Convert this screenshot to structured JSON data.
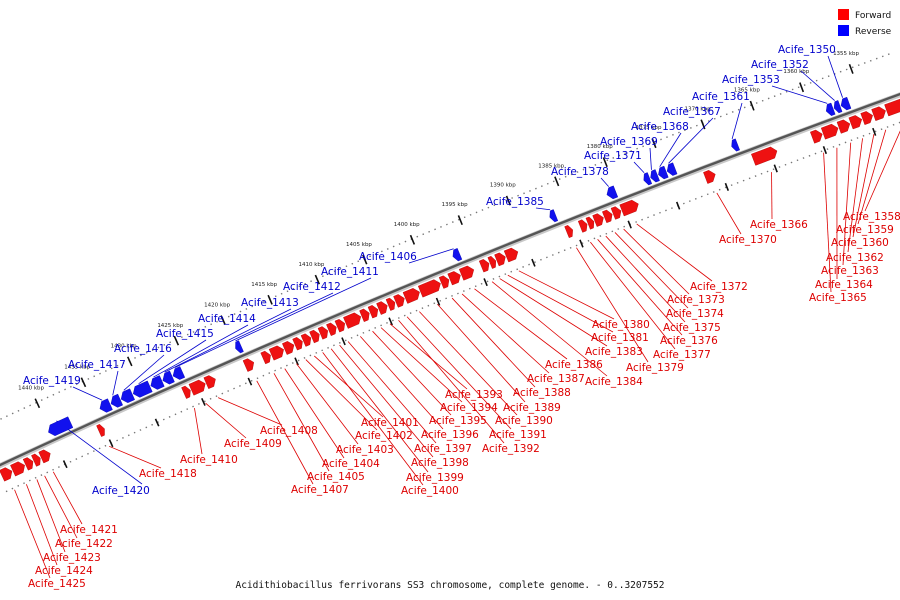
{
  "caption": "Acidithiobacillus ferrivorans SS3 chromosome, complete genome. - 0..3207552",
  "legend": [
    {
      "label": "Forward",
      "color": "#ff0000"
    },
    {
      "label": "Reverse",
      "color": "#0000ff"
    }
  ],
  "colors": {
    "forward": "#ee1111",
    "reverse": "#1111ee",
    "forward_line": "#dd0000",
    "reverse_line": "#0000cc",
    "backbone": "#555555"
  },
  "kbp_ticks": [
    {
      "kbp": 1355,
      "label": "1355 kbp"
    },
    {
      "kbp": 1360,
      "label": "1360 kbp"
    },
    {
      "kbp": 1365,
      "label": "1365 kbp"
    },
    {
      "kbp": 1370,
      "label": "1370 kbp"
    },
    {
      "kbp": 1375,
      "label": "1375 kbp"
    },
    {
      "kbp": 1380,
      "label": "1380 kbp"
    },
    {
      "kbp": 1385,
      "label": "1385 kbp"
    },
    {
      "kbp": 1390,
      "label": "1390 kbp"
    },
    {
      "kbp": 1395,
      "label": "1395 kbp"
    },
    {
      "kbp": 1400,
      "label": "1400 kbp"
    },
    {
      "kbp": 1405,
      "label": "1405 kbp"
    },
    {
      "kbp": 1410,
      "label": "1410 kbp"
    },
    {
      "kbp": 1415,
      "label": "1415 kbp"
    },
    {
      "kbp": 1420,
      "label": "1420 kbp"
    },
    {
      "kbp": 1425,
      "label": "1425 kbp"
    },
    {
      "kbp": 1430,
      "label": "1430 kbp"
    },
    {
      "kbp": 1435,
      "label": "1435 kbp"
    },
    {
      "kbp": 1440,
      "label": "1440 kbp"
    }
  ],
  "forward_genes": [
    {
      "label": "Acife_1358",
      "s": 1351.0,
      "e": 1353.2
    },
    {
      "label": "Acife_1359",
      "s": 1353.3,
      "e": 1354.5
    },
    {
      "label": "Acife_1360",
      "s": 1354.6,
      "e": 1355.6
    },
    {
      "label": "Acife_1362",
      "s": 1355.7,
      "e": 1356.8
    },
    {
      "label": "Acife_1363",
      "s": 1356.9,
      "e": 1358.0
    },
    {
      "label": "Acife_1364",
      "s": 1358.1,
      "e": 1359.6
    },
    {
      "label": "Acife_1365",
      "s": 1359.7,
      "e": 1360.7
    },
    {
      "label": "Acife_1366",
      "s": 1364.3,
      "e": 1366.7
    },
    {
      "label": "Acife_1370",
      "s": 1370.6,
      "e": 1371.6
    },
    {
      "label": "Acife_1372",
      "s": 1378.5,
      "e": 1380.2
    },
    {
      "label": "Acife_1373",
      "s": 1380.3,
      "e": 1381.1
    },
    {
      "label": "Acife_1374",
      "s": 1381.2,
      "e": 1382.0
    },
    {
      "label": "Acife_1375",
      "s": 1382.1,
      "e": 1383.0
    },
    {
      "label": "Acife_1376",
      "s": 1383.1,
      "e": 1383.7
    },
    {
      "label": "Acife_1377",
      "s": 1383.8,
      "e": 1384.5
    },
    {
      "label": "Acife_1379",
      "s": 1385.3,
      "e": 1385.9
    },
    {
      "label": "Acife_1380",
      "s": 1391.0,
      "e": 1392.2
    },
    {
      "label": "Acife_1381",
      "s": 1392.3,
      "e": 1393.2
    },
    {
      "label": "Acife_1383",
      "s": 1393.3,
      "e": 1393.9
    },
    {
      "label": "Acife_1384",
      "s": 1394.0,
      "e": 1394.8
    },
    {
      "label": "Acife_1386",
      "s": 1395.6,
      "e": 1396.9
    },
    {
      "label": "Acife_1387",
      "s": 1397.0,
      "e": 1398.1
    },
    {
      "label": "Acife_1388",
      "s": 1398.2,
      "e": 1399.0
    },
    {
      "label": "Acife_1389",
      "s": 1399.1,
      "e": 1401.2
    },
    {
      "label": "Acife_1390",
      "s": 1401.3,
      "e": 1402.8
    },
    {
      "label": "Acife_1391",
      "s": 1402.9,
      "e": 1403.8
    },
    {
      "label": "Acife_1392",
      "s": 1403.9,
      "e": 1404.6
    },
    {
      "label": "Acife_1393",
      "s": 1404.7,
      "e": 1405.6
    },
    {
      "label": "Acife_1394",
      "s": 1405.7,
      "e": 1406.5
    },
    {
      "label": "Acife_1395",
      "s": 1406.6,
      "e": 1407.4
    },
    {
      "label": "Acife_1396",
      "s": 1407.5,
      "e": 1409.1
    },
    {
      "label": "Acife_1397",
      "s": 1409.2,
      "e": 1410.0
    },
    {
      "label": "Acife_1398",
      "s": 1410.1,
      "e": 1410.9
    },
    {
      "label": "Acife_1399",
      "s": 1411.0,
      "e": 1411.8
    },
    {
      "label": "Acife_1400",
      "s": 1411.9,
      "e": 1412.7
    },
    {
      "label": "Acife_1401",
      "s": 1412.8,
      "e": 1413.6
    },
    {
      "label": "Acife_1402",
      "s": 1413.7,
      "e": 1414.5
    },
    {
      "label": "Acife_1403",
      "s": 1414.6,
      "e": 1415.6
    },
    {
      "label": "Acife_1404",
      "s": 1415.7,
      "e": 1417.0
    },
    {
      "label": "Acife_1405",
      "s": 1417.1,
      "e": 1417.9
    },
    {
      "label": "Acife_1407",
      "s": 1418.9,
      "e": 1419.8
    },
    {
      "label": "Acife_1408",
      "s": 1423.0,
      "e": 1424.0
    },
    {
      "label": "Acife_1409",
      "s": 1424.1,
      "e": 1425.6
    },
    {
      "label": "Acife_1410",
      "s": 1425.7,
      "e": 1426.4
    },
    {
      "label": "Acife_1418",
      "s": 1435.0,
      "e": 1435.6
    },
    {
      "label": "Acife_1421",
      "s": 1440.9,
      "e": 1441.9
    },
    {
      "label": "Acife_1422",
      "s": 1442.0,
      "e": 1442.7
    },
    {
      "label": "Acife_1423",
      "s": 1442.8,
      "e": 1443.6
    },
    {
      "label": "Acife_1424",
      "s": 1443.7,
      "e": 1445.0
    },
    {
      "label": "Acife_1425",
      "s": 1445.1,
      "e": 1446.2
    }
  ],
  "reverse_genes": [
    {
      "label": "Acife_1350",
      "s": 1356.3,
      "e": 1357.1
    },
    {
      "label": "Acife_1352",
      "s": 1357.2,
      "e": 1357.8
    },
    {
      "label": "Acife_1353",
      "s": 1357.9,
      "e": 1358.6
    },
    {
      "label": "Acife_1361",
      "s": 1367.6,
      "e": 1368.2
    },
    {
      "label": "Acife_1367",
      "s": 1374.0,
      "e": 1374.8
    },
    {
      "label": "Acife_1368",
      "s": 1374.9,
      "e": 1375.7
    },
    {
      "label": "Acife_1369",
      "s": 1375.8,
      "e": 1376.5
    },
    {
      "label": "Acife_1371",
      "s": 1376.6,
      "e": 1377.2
    },
    {
      "label": "Acife_1378",
      "s": 1380.1,
      "e": 1381.0
    },
    {
      "label": "Acife_1385",
      "s": 1386.3,
      "e": 1386.9
    },
    {
      "label": "Acife_1406",
      "s": 1396.3,
      "e": 1397.0
    },
    {
      "label": "Acife_1411",
      "s": 1419.4,
      "e": 1420.0
    },
    {
      "label": "Acife_1412",
      "s": 1425.7,
      "e": 1426.7
    },
    {
      "label": "Acife_1413",
      "s": 1426.8,
      "e": 1427.8
    },
    {
      "label": "Acife_1414",
      "s": 1427.9,
      "e": 1429.1
    },
    {
      "label": "Acife_1415",
      "s": 1429.2,
      "e": 1431.0
    },
    {
      "label": "Acife_1416",
      "s": 1431.1,
      "e": 1432.3
    },
    {
      "label": "Acife_1417",
      "s": 1432.4,
      "e": 1433.4
    },
    {
      "label": "Acife_1419",
      "s": 1433.5,
      "e": 1434.6
    },
    {
      "label": "Acife_1420",
      "s": 1437.8,
      "e": 1440.2
    }
  ]
}
